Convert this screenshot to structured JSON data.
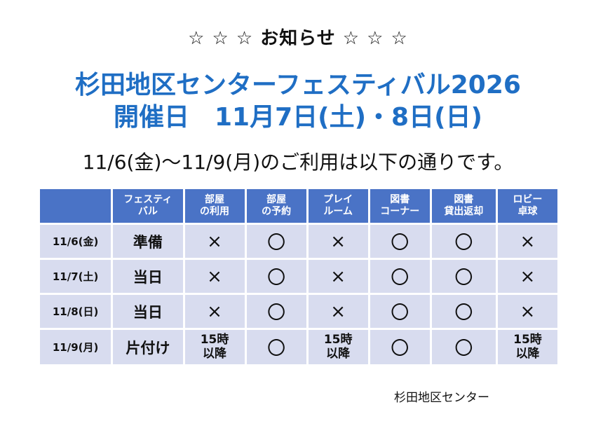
{
  "header": {
    "notice": "☆ ☆ ☆ お知らせ ☆ ☆ ☆",
    "title_line1": "杉田地区センターフェスティバル2026",
    "title_line2": "開催日　11月7日(土)・8日(日)",
    "subtitle": "11/6(金)～11/9(月)のご利用は以下の通りです。"
  },
  "colors": {
    "title": "#1f6ec4",
    "header_cell": "#4a73c6",
    "body_cell": "#d8dcef"
  },
  "table": {
    "columns": [
      "",
      "フェスティ\nバル",
      "部屋\nの利用",
      "部屋\nの予約",
      "プレイ\nルーム",
      "図書\nコーナー",
      "図書\n貸出返却",
      "ロビー\n卓球"
    ],
    "rows": [
      {
        "date": "11/6(金)",
        "phase": "準備",
        "cells": [
          "×",
          "〇",
          "×",
          "〇",
          "〇",
          "×"
        ]
      },
      {
        "date": "11/7(土)",
        "phase": "当日",
        "cells": [
          "×",
          "〇",
          "×",
          "〇",
          "〇",
          "×"
        ]
      },
      {
        "date": "11/8(日)",
        "phase": "当日",
        "cells": [
          "×",
          "〇",
          "×",
          "〇",
          "〇",
          "×"
        ]
      },
      {
        "date": "11/9(月)",
        "phase": "片付け",
        "cells": [
          "15時\n以降",
          "〇",
          "15時\n以降",
          "〇",
          "〇",
          "15時\n以降"
        ]
      }
    ]
  },
  "footer": {
    "organization": "杉田地区センター"
  }
}
